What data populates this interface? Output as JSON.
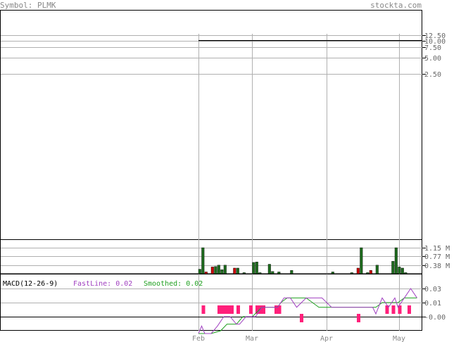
{
  "header": {
    "symbol_label": "Symbol: PLMK",
    "site": "stockta.com"
  },
  "colors": {
    "frame": "#000000",
    "grid": "#b0b0b0",
    "price_line": "#000000",
    "volume_up": "#1e6b1e",
    "volume_down": "#cc0000",
    "fastline": "#a040c0",
    "smoothed": "#20a020",
    "histogram": "#ff1f7a",
    "header_text": "#888888"
  },
  "chart_data": [
    {
      "type": "line",
      "id": "price",
      "x_months": [
        "Feb",
        "Mar",
        "Apr",
        "May"
      ],
      "y_scale": "log",
      "y_ticks": [
        "12.50",
        "10.00",
        "7.50",
        "5.00",
        "2.50"
      ],
      "series": [
        {
          "points": [
            [
              0,
              10.0
            ],
            [
              1,
              10.0
            ]
          ]
        }
      ]
    },
    {
      "type": "bar",
      "id": "volume",
      "y_ticks": [
        "1.15 M",
        "0.77 M",
        "0.38 M"
      ],
      "ylim": [
        0,
        1.5
      ],
      "bars": [
        {
          "i": 0,
          "v": 0.2,
          "c": "up"
        },
        {
          "i": 1,
          "v": 1.15,
          "c": "up"
        },
        {
          "i": 2,
          "v": 0.08,
          "c": "down"
        },
        {
          "i": 4,
          "v": 0.3,
          "c": "down"
        },
        {
          "i": 5,
          "v": 0.32,
          "c": "up"
        },
        {
          "i": 6,
          "v": 0.38,
          "c": "up"
        },
        {
          "i": 7,
          "v": 0.18,
          "c": "up"
        },
        {
          "i": 8,
          "v": 0.38,
          "c": "up"
        },
        {
          "i": 11,
          "v": 0.25,
          "c": "down"
        },
        {
          "i": 12,
          "v": 0.25,
          "c": "up"
        },
        {
          "i": 14,
          "v": 0.05,
          "c": "up"
        },
        {
          "i": 17,
          "v": 0.5,
          "c": "up"
        },
        {
          "i": 18,
          "v": 0.52,
          "c": "up"
        },
        {
          "i": 19,
          "v": 0.05,
          "c": "up"
        },
        {
          "i": 22,
          "v": 0.42,
          "c": "up"
        },
        {
          "i": 23,
          "v": 0.1,
          "c": "up"
        },
        {
          "i": 25,
          "v": 0.08,
          "c": "up"
        },
        {
          "i": 29,
          "v": 0.15,
          "c": "up"
        },
        {
          "i": 42,
          "v": 0.08,
          "c": "up"
        },
        {
          "i": 48,
          "v": 0.05,
          "c": "up"
        },
        {
          "i": 50,
          "v": 0.25,
          "c": "down"
        },
        {
          "i": 51,
          "v": 1.15,
          "c": "up"
        },
        {
          "i": 53,
          "v": 0.05,
          "c": "up"
        },
        {
          "i": 54,
          "v": 0.15,
          "c": "down"
        },
        {
          "i": 56,
          "v": 0.38,
          "c": "up"
        },
        {
          "i": 61,
          "v": 0.55,
          "c": "up"
        },
        {
          "i": 62,
          "v": 1.15,
          "c": "up"
        },
        {
          "i": 63,
          "v": 0.3,
          "c": "up"
        },
        {
          "i": 64,
          "v": 0.25,
          "c": "up"
        },
        {
          "i": 65,
          "v": 0.05,
          "c": "up"
        }
      ]
    },
    {
      "type": "line",
      "id": "macd",
      "title": "MACD(12-26-9)",
      "legend": {
        "fast_label": "FastLine: 0.02",
        "smooth_label": "Smoothed: 0.02"
      },
      "y_ticks": [
        "0.03",
        "0.01",
        "-0.00"
      ],
      "ylim": [
        -0.02,
        0.04
      ],
      "fast": [
        [
          0,
          -0.018
        ],
        [
          1,
          -0.01
        ],
        [
          2,
          -0.018
        ],
        [
          4,
          -0.018
        ],
        [
          6,
          -0.01
        ],
        [
          8,
          0.0
        ],
        [
          10,
          0.0
        ],
        [
          12,
          -0.008
        ],
        [
          13,
          -0.008
        ],
        [
          15,
          0.0
        ],
        [
          18,
          0.0
        ],
        [
          20,
          0.01
        ],
        [
          23,
          0.01
        ],
        [
          25,
          0.01
        ],
        [
          26,
          0.015
        ],
        [
          27,
          0.02
        ],
        [
          29,
          0.02
        ],
        [
          31,
          0.01
        ],
        [
          34,
          0.02
        ],
        [
          37,
          0.02
        ],
        [
          39,
          0.02
        ],
        [
          42,
          0.01
        ],
        [
          45,
          0.01
        ],
        [
          50,
          0.01
        ],
        [
          52,
          0.01
        ],
        [
          55,
          0.01
        ],
        [
          56,
          0.003
        ],
        [
          58,
          0.02
        ],
        [
          60,
          0.01
        ],
        [
          62,
          0.02
        ],
        [
          63,
          0.01
        ],
        [
          65,
          0.02
        ],
        [
          67,
          0.03
        ],
        [
          69,
          0.02
        ]
      ],
      "smooth": [
        [
          0,
          -0.018
        ],
        [
          2,
          -0.018
        ],
        [
          4,
          -0.018
        ],
        [
          7,
          -0.015
        ],
        [
          9,
          -0.008
        ],
        [
          12,
          -0.008
        ],
        [
          14,
          0.0
        ],
        [
          17,
          0.0
        ],
        [
          20,
          0.01
        ],
        [
          25,
          0.01
        ],
        [
          26,
          0.015
        ],
        [
          28,
          0.02
        ],
        [
          34,
          0.02
        ],
        [
          36,
          0.015
        ],
        [
          38,
          0.01
        ],
        [
          45,
          0.01
        ],
        [
          52,
          0.01
        ],
        [
          56,
          0.01
        ],
        [
          58,
          0.015
        ],
        [
          63,
          0.015
        ],
        [
          65,
          0.02
        ],
        [
          69,
          0.02
        ]
      ],
      "hist": [
        {
          "i": 1,
          "v": 0.005
        },
        {
          "i": 6,
          "v": 0.005
        },
        {
          "i": 7,
          "v": 0.005
        },
        {
          "i": 8,
          "v": 0.005
        },
        {
          "i": 9,
          "v": 0.005
        },
        {
          "i": 10,
          "v": 0.005
        },
        {
          "i": 12,
          "v": 0.005
        },
        {
          "i": 16,
          "v": 0.005
        },
        {
          "i": 18,
          "v": 0.005
        },
        {
          "i": 19,
          "v": 0.005
        },
        {
          "i": 20,
          "v": 0.005
        },
        {
          "i": 24,
          "v": 0.005
        },
        {
          "i": 25,
          "v": 0.005
        },
        {
          "i": 32,
          "v": -0.005
        },
        {
          "i": 50,
          "v": -0.005
        },
        {
          "i": 59,
          "v": 0.005
        },
        {
          "i": 61,
          "v": 0.005
        },
        {
          "i": 63,
          "v": 0.005
        },
        {
          "i": 66,
          "v": 0.005
        }
      ]
    }
  ]
}
